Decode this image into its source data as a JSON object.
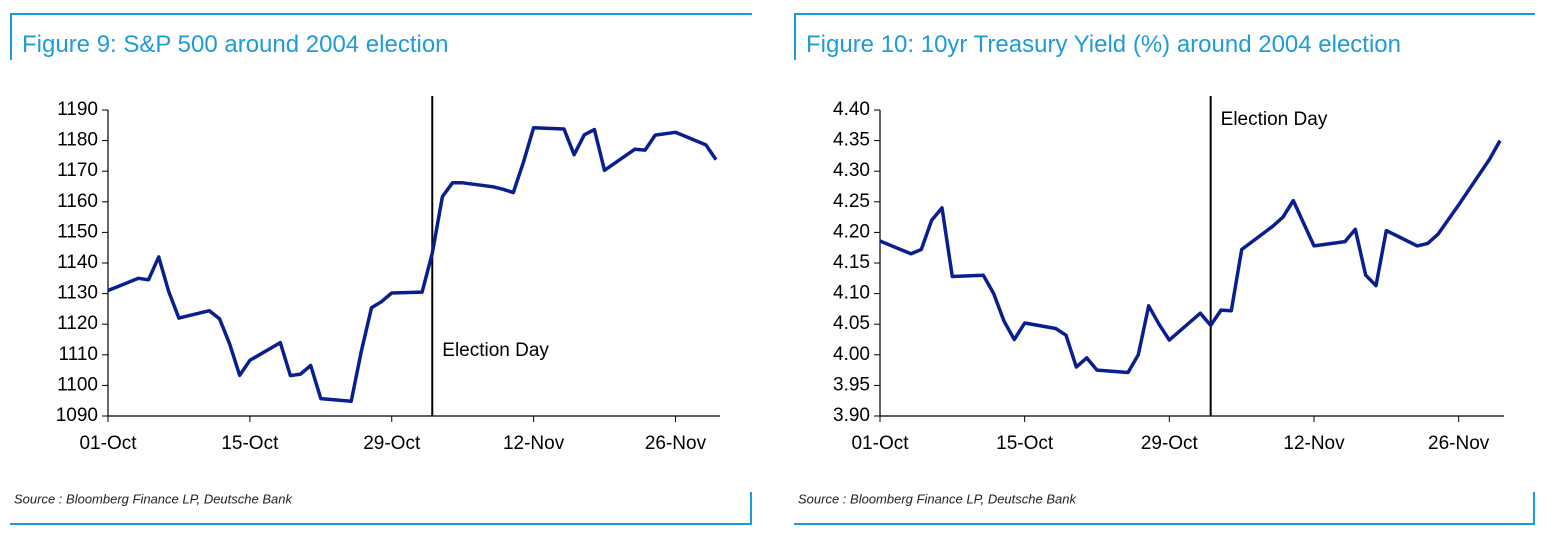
{
  "chart_data": [
    {
      "type": "line",
      "title": "Figure 9: S&P 500 around 2004 election",
      "source": "Source : Bloomberg Finance LP, Deutsche Bank",
      "x": [
        "01-Oct",
        "04-Oct",
        "05-Oct",
        "06-Oct",
        "07-Oct",
        "08-Oct",
        "11-Oct",
        "12-Oct",
        "13-Oct",
        "14-Oct",
        "15-Oct",
        "18-Oct",
        "19-Oct",
        "20-Oct",
        "21-Oct",
        "22-Oct",
        "25-Oct",
        "26-Oct",
        "27-Oct",
        "28-Oct",
        "29-Oct",
        "01-Nov",
        "02-Nov",
        "03-Nov",
        "04-Nov",
        "05-Nov",
        "08-Nov",
        "09-Nov",
        "10-Nov",
        "11-Nov",
        "12-Nov",
        "15-Nov",
        "16-Nov",
        "17-Nov",
        "18-Nov",
        "19-Nov",
        "22-Nov",
        "23-Nov",
        "24-Nov",
        "26-Nov",
        "29-Nov",
        "30-Nov"
      ],
      "series": [
        {
          "color": "#0a1f8f",
          "values": [
            1131,
            1135,
            1134.5,
            1142,
            1130.6,
            1122,
            1124.4,
            1121.8,
            1113.6,
            1103.3,
            1108.2,
            1114,
            1103.2,
            1103.7,
            1106.5,
            1095.7,
            1094.8,
            1111.1,
            1125.4,
            1127.4,
            1130.2,
            1130.5,
            1143.2,
            1161.7,
            1166.2,
            1166.2,
            1164.9,
            1164.1,
            1163,
            1173,
            1184.2,
            1183.8,
            1175.4,
            1181.9,
            1183.6,
            1170.3,
            1177.2,
            1176.9,
            1181.8,
            1182.7,
            1178.6,
            1173.8
          ]
        }
      ],
      "xlim": [
        "01-Oct",
        "30-Nov"
      ],
      "xticks": [
        "01-Oct",
        "15-Oct",
        "29-Oct",
        "12-Nov",
        "26-Nov"
      ],
      "ylim": [
        1090,
        1190
      ],
      "yticks": [
        1090,
        1100,
        1110,
        1120,
        1130,
        1140,
        1150,
        1160,
        1170,
        1180,
        1190
      ],
      "annotations": [
        {
          "text": "Election Day",
          "x": "02-Nov"
        }
      ]
    },
    {
      "type": "line",
      "title": "Figure 10: 10yr Treasury Yield (%) around 2004 election",
      "source": "Source : Bloomberg Finance LP, Deutsche Bank",
      "x": [
        "01-Oct",
        "04-Oct",
        "05-Oct",
        "06-Oct",
        "07-Oct",
        "08-Oct",
        "11-Oct",
        "12-Oct",
        "13-Oct",
        "14-Oct",
        "15-Oct",
        "18-Oct",
        "19-Oct",
        "20-Oct",
        "21-Oct",
        "22-Oct",
        "25-Oct",
        "26-Oct",
        "27-Oct",
        "28-Oct",
        "29-Oct",
        "01-Nov",
        "02-Nov",
        "03-Nov",
        "04-Nov",
        "05-Nov",
        "08-Nov",
        "09-Nov",
        "10-Nov",
        "12-Nov",
        "15-Nov",
        "16-Nov",
        "17-Nov",
        "18-Nov",
        "19-Nov",
        "22-Nov",
        "23-Nov",
        "24-Nov",
        "26-Nov",
        "29-Nov",
        "30-Nov"
      ],
      "series": [
        {
          "color": "#0a1f8f",
          "values": [
            4.186,
            4.165,
            4.172,
            4.22,
            4.24,
            4.128,
            4.13,
            4.1,
            4.055,
            4.025,
            4.052,
            4.043,
            4.032,
            3.98,
            3.995,
            3.975,
            3.971,
            4.0,
            4.08,
            4.05,
            4.024,
            4.068,
            4.048,
            4.073,
            4.072,
            4.172,
            4.21,
            4.225,
            4.252,
            4.178,
            4.185,
            4.205,
            4.13,
            4.113,
            4.203,
            4.178,
            4.182,
            4.197,
            4.245,
            4.32,
            4.35
          ]
        }
      ],
      "xlim": [
        "01-Oct",
        "30-Nov"
      ],
      "xticks": [
        "01-Oct",
        "15-Oct",
        "29-Oct",
        "12-Nov",
        "26-Nov"
      ],
      "ylim": [
        3.9,
        4.4
      ],
      "yticks": [
        {
          "value": 3.9,
          "label": "3.90"
        },
        {
          "value": 3.95,
          "label": "3.95"
        },
        {
          "value": 4.0,
          "label": "4.00"
        },
        {
          "value": 4.05,
          "label": "4.05"
        },
        {
          "value": 4.1,
          "label": "4.10"
        },
        {
          "value": 4.15,
          "label": "4.15"
        },
        {
          "value": 4.2,
          "label": "4.20"
        },
        {
          "value": 4.25,
          "label": "4.25"
        },
        {
          "value": 4.3,
          "label": "4.30"
        },
        {
          "value": 4.35,
          "label": "4.35"
        },
        {
          "value": 4.4,
          "label": "4.40"
        }
      ],
      "annotations": [
        {
          "text": "Election Day",
          "x": "02-Nov"
        }
      ]
    }
  ]
}
